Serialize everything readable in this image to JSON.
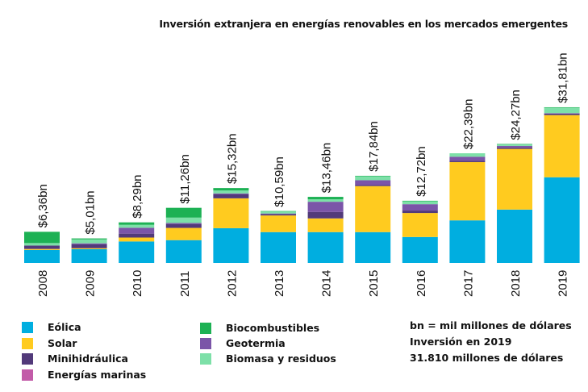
{
  "chart_data": {
    "type": "bar",
    "stacked": true,
    "title": "Inversión extranjera en energías renovables en los mercados emergentes",
    "xlabel": "",
    "ylabel": "",
    "ylim": [
      0,
      32
    ],
    "grid": false,
    "legend_position": "bottom",
    "categories": [
      "2008",
      "2009",
      "2010",
      "2011",
      "2012",
      "2013",
      "2014",
      "2015",
      "2016",
      "2017",
      "2018",
      "2019"
    ],
    "totals": [
      6.36,
      5.01,
      8.29,
      11.26,
      15.32,
      10.59,
      13.46,
      17.84,
      12.72,
      22.39,
      24.27,
      31.81
    ],
    "total_labels": [
      "$6,36bn",
      "$5,01bn",
      "$8,29bn",
      "$11,26bn",
      "$15,32bn",
      "$10,59bn",
      "$13,46bn",
      "$17,84bn",
      "$12,72bn",
      "$22,39bn",
      "$24,27bn",
      "$31,81bn"
    ],
    "series": [
      {
        "name": "Eólica",
        "color": "#00AEE0",
        "values": [
          2.66,
          2.81,
          4.39,
          4.66,
          7.1,
          6.3,
          6.3,
          6.3,
          5.3,
          8.7,
          10.9,
          17.5
        ]
      },
      {
        "name": "Solar",
        "color": "#FFCB1F",
        "values": [
          0.2,
          0.2,
          0.8,
          2.5,
          6.1,
          3.4,
          2.8,
          9.4,
          4.9,
          11.9,
          12.4,
          12.7
        ]
      },
      {
        "name": "Minihidráulica",
        "color": "#523A7A",
        "values": [
          0.7,
          0.8,
          0.8,
          0.8,
          0.8,
          0.3,
          1.3,
          0.2,
          0.5,
          0.3,
          0.3,
          0.3
        ]
      },
      {
        "name": "Energías marinas",
        "color": "#C25BA8",
        "values": [
          0,
          0,
          0,
          0,
          0,
          0,
          0,
          0,
          0,
          0,
          0,
          0
        ]
      },
      {
        "name": "Geotermia",
        "color": "#7B55A8",
        "values": [
          0,
          0.2,
          1.2,
          0.2,
          0.2,
          0.1,
          2.1,
          1.0,
          1.3,
          0.8,
          0.3,
          0.1
        ]
      },
      {
        "name": "Biomasa y residuos",
        "color": "#7DE0A8",
        "values": [
          0.5,
          0.8,
          0.6,
          1.1,
          0.6,
          0.4,
          0.5,
          0.8,
          0.6,
          0.7,
          0.3,
          1.1
        ]
      },
      {
        "name": "Biocombustibles",
        "color": "#1DB154",
        "values": [
          2.3,
          0.2,
          0.5,
          2.0,
          0.5,
          0.1,
          0.5,
          0.1,
          0.1,
          0.0,
          0.1,
          0.1
        ]
      }
    ]
  },
  "legend": {
    "column1": [
      {
        "label": "Eólica",
        "color": "#00AEE0"
      },
      {
        "label": "Solar",
        "color": "#FFCB1F"
      },
      {
        "label": "Minihidráulica",
        "color": "#523A7A"
      },
      {
        "label": "Energías marinas",
        "color": "#C25BA8"
      }
    ],
    "column2": [
      {
        "label": "Biocombustibles",
        "color": "#1DB154"
      },
      {
        "label": "Geotermia",
        "color": "#7B55A8"
      },
      {
        "label": "Biomasa y residuos",
        "color": "#7DE0A8"
      }
    ]
  },
  "notes": {
    "line1": "bn = mil millones de dólares",
    "line2": "Inversión en 2019",
    "line3": "31.810 millones de dólares"
  }
}
